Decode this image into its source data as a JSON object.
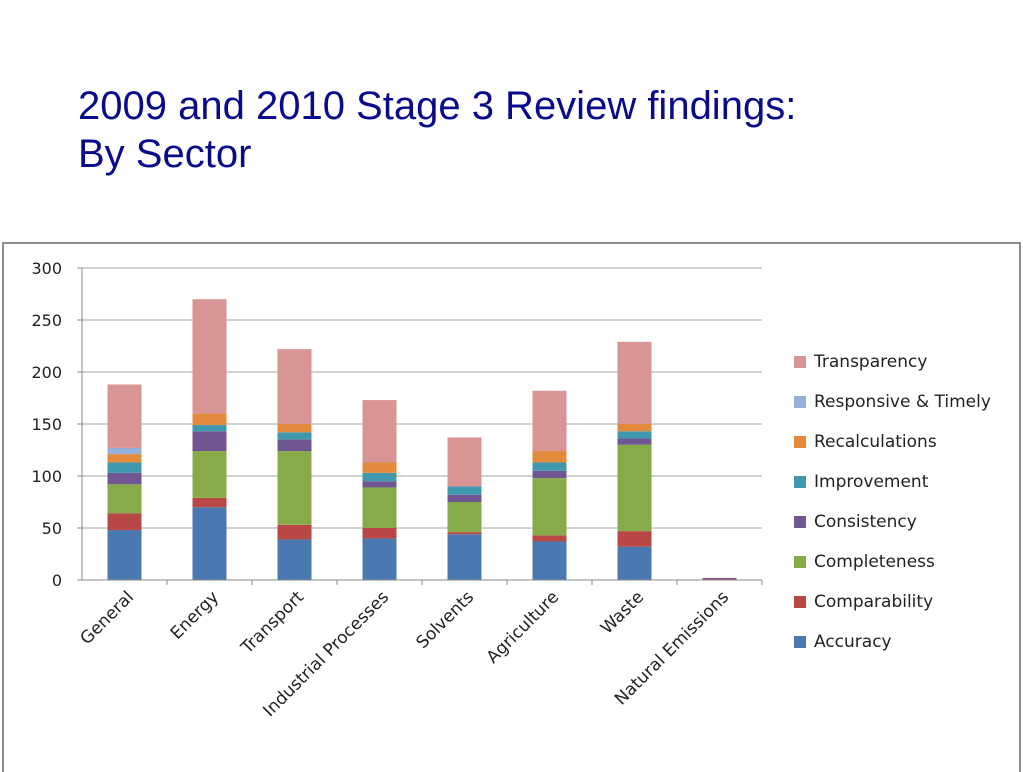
{
  "title": {
    "line1": "2009 and 2010 Stage 3 Review findings:",
    "line2": "By Sector"
  },
  "chart_data": {
    "type": "bar",
    "stacked": true,
    "categories": [
      "General",
      "Energy",
      "Transport",
      "Industrial Processes",
      "Solvents",
      "Agriculture",
      "Waste",
      "Natural Emissions"
    ],
    "ylim": [
      0,
      300
    ],
    "yticks": [
      0,
      50,
      100,
      150,
      200,
      250,
      300
    ],
    "grid": true,
    "legend_position": "right",
    "series": [
      {
        "name": "Accuracy",
        "color": "#4a78b0",
        "values": [
          48,
          70,
          39,
          40,
          44,
          37,
          32,
          0
        ]
      },
      {
        "name": "Comparability",
        "color": "#b84745",
        "values": [
          16,
          9,
          14,
          10,
          2,
          6,
          15,
          1
        ]
      },
      {
        "name": "Completeness",
        "color": "#88ab4a",
        "values": [
          28,
          45,
          71,
          39,
          29,
          55,
          83,
          0
        ]
      },
      {
        "name": "Consistency",
        "color": "#715791",
        "values": [
          11,
          19,
          11,
          6,
          7,
          7,
          6,
          1
        ]
      },
      {
        "name": "Improvement",
        "color": "#3f98ad",
        "values": [
          10,
          6,
          7,
          8,
          8,
          8,
          7,
          0
        ]
      },
      {
        "name": "Recalculations",
        "color": "#e38a3c",
        "values": [
          8,
          11,
          8,
          10,
          0,
          11,
          7,
          0
        ]
      },
      {
        "name": "Responsive & Timely",
        "color": "#95b0d9",
        "values": [
          6,
          0,
          0,
          0,
          0,
          0,
          0,
          0
        ]
      },
      {
        "name": "Transparency",
        "color": "#d99594",
        "values": [
          61,
          110,
          72,
          60,
          47,
          58,
          79,
          0
        ]
      }
    ]
  }
}
